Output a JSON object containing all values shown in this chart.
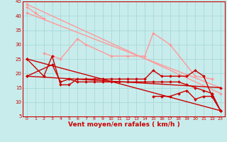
{
  "background_color": "#C8ECEC",
  "grid_color": "#A8D8D8",
  "pk": "#FF9999",
  "dk": "#CC0000",
  "xlabel": "Vent moyen/en rafales ( km/h )",
  "xlim": [
    -0.5,
    23.5
  ],
  "ylim": [
    5,
    45
  ],
  "yticks": [
    5,
    10,
    15,
    20,
    25,
    30,
    35,
    40,
    45
  ],
  "xticks": [
    0,
    1,
    2,
    3,
    4,
    5,
    6,
    7,
    8,
    9,
    10,
    11,
    12,
    13,
    14,
    15,
    16,
    17,
    18,
    19,
    20,
    21,
    22,
    23
  ],
  "series": [
    {
      "color": "#FF9999",
      "lw": 1.0,
      "marker": "D",
      "ms": 2.0,
      "x": [
        0,
        1,
        2
      ],
      "y": [
        43,
        41,
        39
      ]
    },
    {
      "color": "#FF9999",
      "lw": 1.0,
      "marker": "D",
      "ms": 2.0,
      "x": [
        0,
        23
      ],
      "y": [
        44,
        13
      ]
    },
    {
      "color": "#FF9999",
      "lw": 1.0,
      "marker": "D",
      "ms": 2.0,
      "x": [
        0,
        23
      ],
      "y": [
        41,
        15
      ]
    },
    {
      "color": "#FF9999",
      "lw": 1.0,
      "marker": "D",
      "ms": 2.0,
      "x": [
        2,
        4,
        6,
        7,
        10,
        12,
        14,
        15,
        17,
        20,
        22
      ],
      "y": [
        27,
        25,
        32,
        30,
        26,
        26,
        26,
        34,
        30,
        19,
        18
      ]
    },
    {
      "color": "#CC0000",
      "lw": 1.0,
      "marker": "D",
      "ms": 2.0,
      "x": [
        0,
        23
      ],
      "y": [
        25,
        7
      ]
    },
    {
      "color": "#CC0000",
      "lw": 1.0,
      "marker": "D",
      "ms": 2.0,
      "x": [
        0,
        23
      ],
      "y": [
        19,
        15
      ]
    },
    {
      "color": "#CC0000",
      "lw": 1.0,
      "marker": "D",
      "ms": 2.0,
      "x": [
        0,
        2,
        3,
        4,
        5,
        6,
        7,
        8,
        9,
        10,
        11,
        12,
        13,
        14,
        15,
        16,
        17,
        18,
        19,
        20,
        21,
        22,
        23
      ],
      "y": [
        25,
        19,
        26,
        16,
        16,
        18,
        18,
        18,
        18,
        18,
        18,
        18,
        18,
        18,
        21,
        19,
        19,
        19,
        19,
        21,
        19,
        12,
        7
      ]
    },
    {
      "color": "#CC0000",
      "lw": 1.0,
      "marker": "D",
      "ms": 2.0,
      "x": [
        0,
        3,
        4,
        5,
        6,
        7,
        8,
        9,
        10,
        11,
        12,
        13,
        14,
        15,
        16,
        17,
        18,
        19,
        20,
        21,
        22,
        23
      ],
      "y": [
        19,
        23,
        17,
        18,
        17,
        17,
        17,
        17,
        17,
        17,
        17,
        17,
        17,
        17,
        17,
        17,
        17,
        16,
        15,
        14,
        13,
        7
      ]
    },
    {
      "color": "#CC0000",
      "lw": 1.0,
      "marker": "D",
      "ms": 2.0,
      "x": [
        15,
        16,
        17,
        18,
        19,
        20,
        21,
        22,
        23
      ],
      "y": [
        12,
        12,
        12,
        13,
        14,
        11,
        12,
        12,
        7
      ]
    }
  ]
}
